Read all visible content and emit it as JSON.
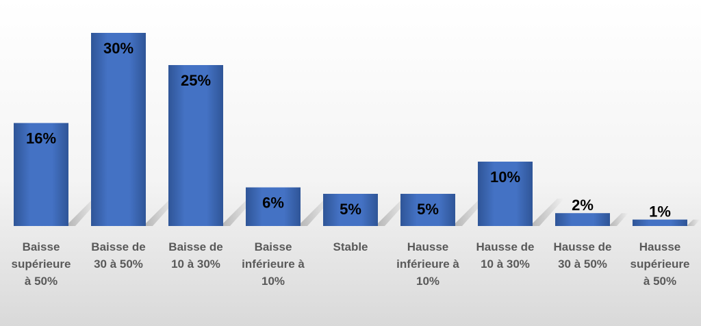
{
  "chart_data": {
    "type": "bar",
    "categories": [
      "Baisse supérieure à 50%",
      "Baisse de 30 à 50%",
      "Baisse de 10 à 30%",
      "Baisse inférieure à 10%",
      "Stable",
      "Hausse inférieure à 10%",
      "Hausse de 10 à 30%",
      "Hausse de 30 à 50%",
      "Hausse supérieure à 50%"
    ],
    "category_lines": [
      [
        "Baisse",
        "supérieure",
        "à 50%"
      ],
      [
        "Baisse de",
        "30 à 50%"
      ],
      [
        "Baisse de",
        "10 à 30%"
      ],
      [
        "Baisse",
        "inférieure à",
        "10%"
      ],
      [
        "Stable"
      ],
      [
        "Hausse",
        "inférieure à",
        "10%"
      ],
      [
        "Hausse de",
        "10 à 30%"
      ],
      [
        "Hausse de",
        "30 à 50%"
      ],
      [
        "Hausse",
        "supérieure",
        "à 50%"
      ]
    ],
    "values": [
      16,
      30,
      25,
      6,
      5,
      5,
      10,
      2,
      1
    ],
    "data_labels": [
      "16%",
      "30%",
      "25%",
      "6%",
      "5%",
      "5%",
      "10%",
      "2%",
      "1%"
    ],
    "unit": "%",
    "ylim": [
      0,
      30
    ],
    "grid": false,
    "legend": "none",
    "bar_color": "#4472c4",
    "bar_color_dark": "#2f5597",
    "title": "",
    "xlabel": "",
    "ylabel": ""
  }
}
